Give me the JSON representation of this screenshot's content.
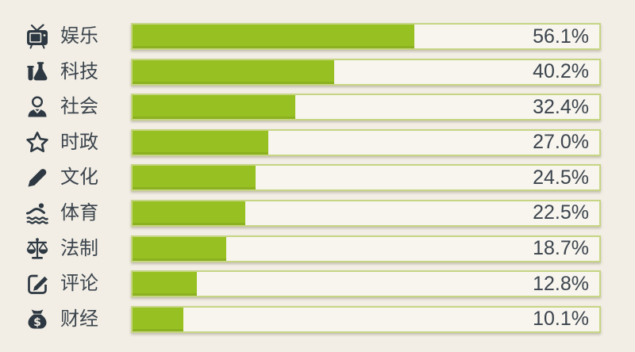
{
  "theme": {
    "page_bg": "#f2eee5",
    "bar_color": "#97c123",
    "track_bg": "#f8f5ee",
    "track_border": "#c6d583",
    "text_color": "#3b444d",
    "icon_color": "#2d3842"
  },
  "chart_data": {
    "type": "bar",
    "orientation": "horizontal",
    "categories": [
      "娱乐",
      "科技",
      "社会",
      "时政",
      "文化",
      "体育",
      "法制",
      "评论",
      "财经"
    ],
    "values": [
      56.1,
      40.2,
      32.4,
      27.0,
      24.5,
      22.5,
      18.7,
      12.8,
      10.1
    ],
    "value_labels": [
      "56.1%",
      "40.2%",
      "32.4%",
      "27.0%",
      "24.5%",
      "22.5%",
      "18.7%",
      "12.8%",
      "10.1%"
    ],
    "icons": [
      "tv-icon",
      "flask-icon",
      "person-icon",
      "star-icon",
      "pencil-icon",
      "swimmer-icon",
      "scales-icon",
      "edit-square-icon",
      "money-bag-icon"
    ],
    "title": "",
    "xlabel": "",
    "ylabel": "",
    "xlim": [
      0,
      93
    ],
    "grid": false,
    "legend": false,
    "value_labels_position": "inside-track-right"
  },
  "rows": [
    {
      "label": "娱乐",
      "value": 56.1,
      "value_label": "56.1%",
      "icon": "tv-icon"
    },
    {
      "label": "科技",
      "value": 40.2,
      "value_label": "40.2%",
      "icon": "flask-icon"
    },
    {
      "label": "社会",
      "value": 32.4,
      "value_label": "32.4%",
      "icon": "person-icon"
    },
    {
      "label": "时政",
      "value": 27.0,
      "value_label": "27.0%",
      "icon": "star-icon"
    },
    {
      "label": "文化",
      "value": 24.5,
      "value_label": "24.5%",
      "icon": "pencil-icon"
    },
    {
      "label": "体育",
      "value": 22.5,
      "value_label": "22.5%",
      "icon": "swimmer-icon"
    },
    {
      "label": "法制",
      "value": 18.7,
      "value_label": "18.7%",
      "icon": "scales-icon"
    },
    {
      "label": "评论",
      "value": 12.8,
      "value_label": "12.8%",
      "icon": "edit-square-icon"
    },
    {
      "label": "财经",
      "value": 10.1,
      "value_label": "10.1%",
      "icon": "money-bag-icon"
    }
  ]
}
